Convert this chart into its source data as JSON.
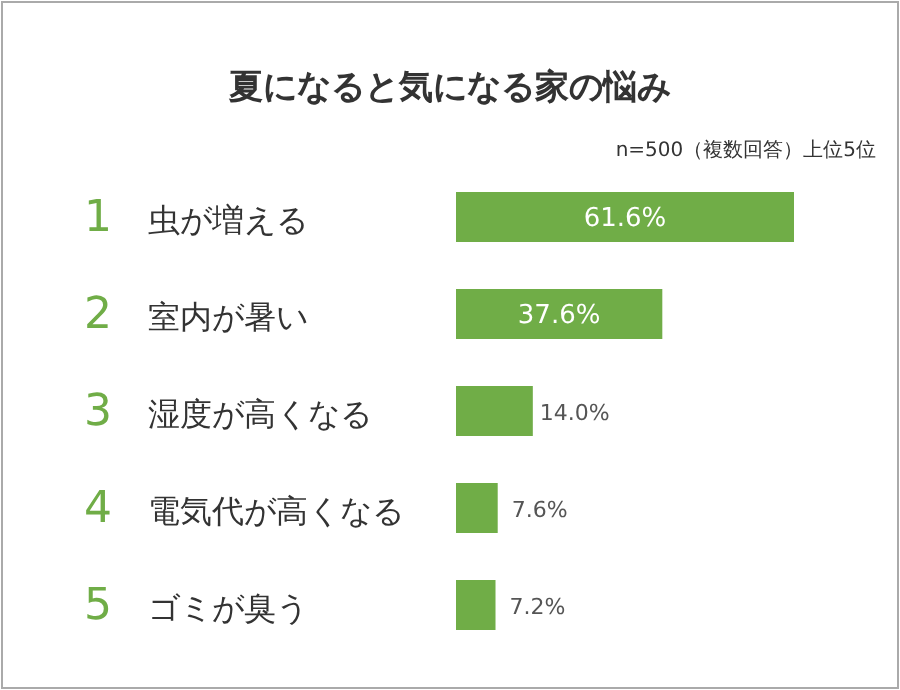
{
  "chart_data": {
    "type": "bar",
    "orientation": "horizontal",
    "title": "夏になると気になる家の悩み",
    "subtitle": "n=500（複数回答）上位5位",
    "categories": [
      "1 虫が増える",
      "2 室内が暑い",
      "3 湿度が高くなる",
      "4 電気代が高くなる",
      "5 ゴミが臭う"
    ],
    "values": [
      61.6,
      37.6,
      14.0,
      7.6,
      7.2
    ],
    "value_labels": [
      "61.6%",
      "37.6%",
      "14.0%",
      "7.6%",
      "7.2%"
    ],
    "color": "#70ad47"
  }
}
